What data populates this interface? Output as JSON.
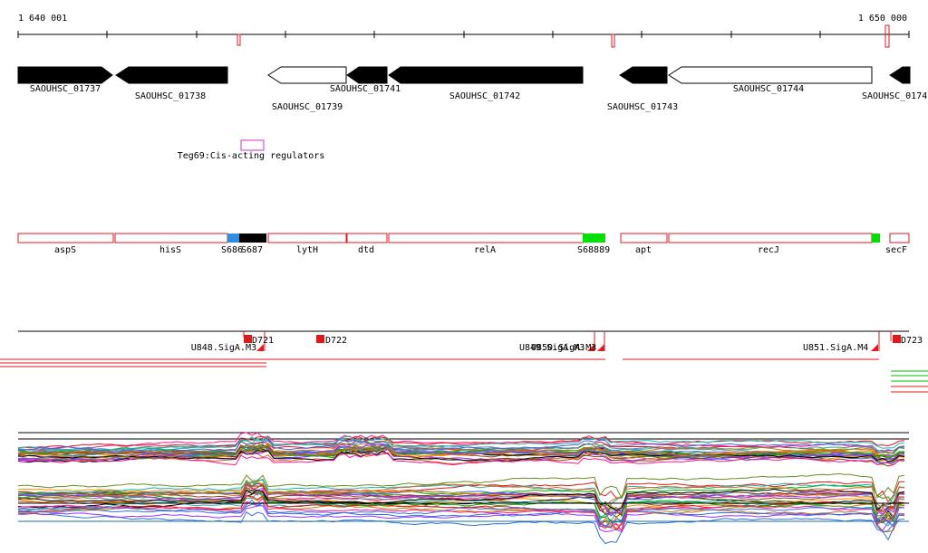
{
  "ruler": {
    "start_label": "1 640 001",
    "end_label": "1 650 000"
  },
  "colors": {
    "gene_fill": "#000000",
    "gene_outline": "#000000",
    "operon_outline": "#e0191f",
    "regulator_outline": "#cc33cc",
    "promoter": "#e0191f",
    "accent_green": "#00e000",
    "accent_blue": "#2f8fdf",
    "track_line": "#000000"
  },
  "genes": [
    {
      "label": "SAOUHSC_01737",
      "strand": "fwd",
      "filled": true
    },
    {
      "label": "SAOUHSC_01738",
      "strand": "rev",
      "filled": true
    },
    {
      "label": "SAOUHSC_01739",
      "strand": "rev",
      "filled": false
    },
    {
      "label": "SAOUHSC_01741",
      "strand": "rev",
      "filled": true
    },
    {
      "label": "SAOUHSC_01742",
      "strand": "rev",
      "filled": true
    },
    {
      "label": "SAOUHSC_01743",
      "strand": "rev",
      "filled": true
    },
    {
      "label": "SAOUHSC_01744",
      "strand": "rev",
      "filled": false
    },
    {
      "label": "SAOUHSC_0174",
      "strand": "rev",
      "filled": true
    }
  ],
  "regulators": [
    {
      "label": "Teg69:Cis-acting regulators"
    }
  ],
  "operon_genes": [
    {
      "label": "aspS"
    },
    {
      "label": "hisS"
    },
    {
      "label": "S686"
    },
    {
      "label": "S687"
    },
    {
      "label": "lytH"
    },
    {
      "label": "dtd"
    },
    {
      "label": "relA"
    },
    {
      "label": "S68889"
    },
    {
      "label": "apt"
    },
    {
      "label": "recJ"
    },
    {
      "label": "secF"
    }
  ],
  "promoters": [
    {
      "label": "D721"
    },
    {
      "label": "D722"
    },
    {
      "label": "D723"
    }
  ],
  "sigma_sites": [
    {
      "label": "U848.SigA.M3"
    },
    {
      "label": "U849.SigA.M3"
    },
    {
      "label": "U850.SigA.M3"
    },
    {
      "label": "U851.SigA.M4"
    }
  ]
}
